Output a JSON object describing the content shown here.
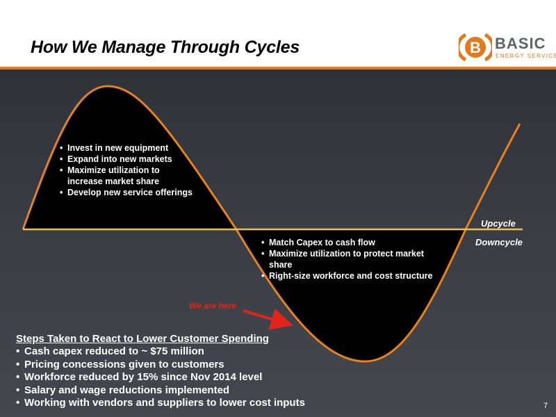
{
  "header": {
    "title": "How We Manage Through Cycles",
    "logo": {
      "letter": "B",
      "word": "BASIC",
      "subtitle": "ENERGY SERVICES",
      "accent_color": "#e07a1f",
      "word_color": "#5f6368"
    }
  },
  "diagram": {
    "upcycle_label": "Upcycle",
    "downcycle_label": "Downcycle",
    "upcycle_actions": [
      "Invest in new equipment",
      "Expand into new markets",
      "Maximize utilization to increase market share",
      "Develop new service offerings"
    ],
    "downcycle_actions": [
      "Match Capex to cash flow",
      "Maximize utilization to protect market share",
      "Right-size workforce and cost structure"
    ],
    "marker_label": "We are here",
    "curve_color": "#e8821e",
    "marker_color": "#e3241b"
  },
  "steps": {
    "title": "Steps Taken to React to Lower Customer Spending",
    "items": [
      "Cash capex reduced to ~ $75 million",
      "Pricing concessions given to customers",
      "Workforce reduced by 15% since Nov 2014 level",
      "Salary and wage reductions implemented",
      "Working with vendors and suppliers to lower cost inputs"
    ]
  },
  "page_number": "7"
}
